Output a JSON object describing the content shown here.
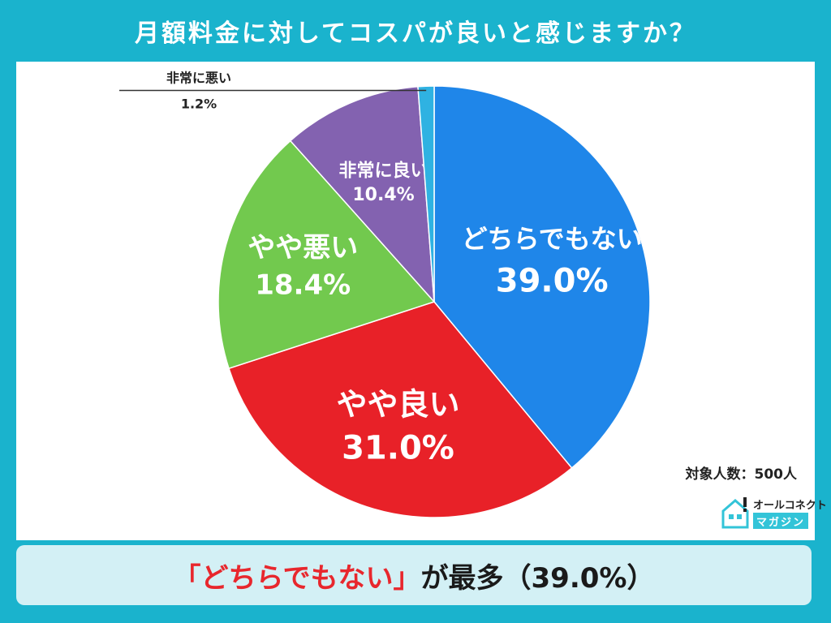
{
  "title": "月額料金に対してコスパが良いと感じますか？",
  "chart_data": {
    "type": "pie",
    "title": "月額料金に対してコスパが良いと感じますか？",
    "slices": [
      {
        "label": "どちらでもない",
        "value": 39.0,
        "display": "39.0%",
        "color": "#1f86e9"
      },
      {
        "label": "やや良い",
        "value": 31.0,
        "display": "31.0%",
        "color": "#e82128"
      },
      {
        "label": "やや悪い",
        "value": 18.4,
        "display": "18.4%",
        "color": "#72c94e"
      },
      {
        "label": "非常に良い",
        "value": 10.4,
        "display": "10.4%",
        "color": "#8362b0"
      },
      {
        "label": "非常に悪い",
        "value": 1.2,
        "display": "1.2%",
        "color": "#2fb2e2"
      }
    ],
    "unit": "%"
  },
  "sample_size": "対象人数：500人",
  "brand": {
    "name": "オールコネクト",
    "sub": "マガジン"
  },
  "banner": {
    "highlight": "「どちらでもない」",
    "rest": "が最多（39.0%）"
  },
  "colors": {
    "frame": "#1ab3cd",
    "banner_bg": "#d3f0f5",
    "highlight": "#e8272d"
  }
}
